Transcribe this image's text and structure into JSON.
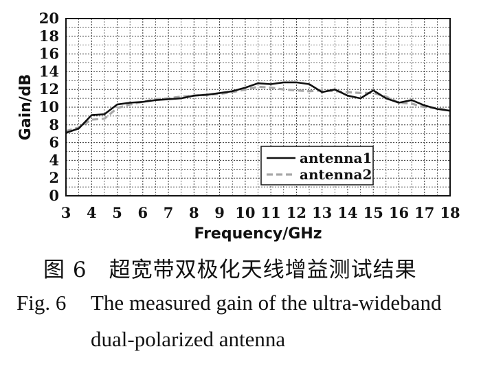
{
  "chart_data": {
    "type": "line",
    "xlabel": "Frequency/GHz",
    "ylabel": "Gain/dB",
    "xlim": [
      3,
      18
    ],
    "ylim": [
      0,
      20
    ],
    "xticks": [
      3,
      4,
      5,
      6,
      7,
      8,
      9,
      10,
      11,
      12,
      13,
      14,
      15,
      16,
      17,
      18
    ],
    "yticks": [
      0,
      2,
      4,
      6,
      8,
      10,
      12,
      14,
      16,
      18,
      20
    ],
    "grid": true,
    "legend_position": "bottom-right",
    "series": [
      {
        "name": "antenna1",
        "style": "solid",
        "color": "#111111",
        "x": [
          3.0,
          3.5,
          4.0,
          4.5,
          5.0,
          5.5,
          6.0,
          6.5,
          7.0,
          7.5,
          8.0,
          8.5,
          9.0,
          9.5,
          10.0,
          10.5,
          11.0,
          11.5,
          12.0,
          12.5,
          13.0,
          13.5,
          14.0,
          14.5,
          15.0,
          15.5,
          16.0,
          16.5,
          17.0,
          17.5,
          18.0
        ],
        "y": [
          7.1,
          7.6,
          9.1,
          9.2,
          10.3,
          10.5,
          10.6,
          10.8,
          10.9,
          11.0,
          11.3,
          11.4,
          11.6,
          11.8,
          12.2,
          12.7,
          12.6,
          12.8,
          12.8,
          12.6,
          11.7,
          12.0,
          11.3,
          11.0,
          11.9,
          11.0,
          10.5,
          10.8,
          10.2,
          9.8,
          9.6
        ]
      },
      {
        "name": "antenna2",
        "style": "dashed",
        "color": "#a8a8a8",
        "x": [
          3.0,
          3.5,
          4.0,
          4.5,
          5.0,
          5.5,
          6.0,
          6.5,
          7.0,
          7.5,
          8.0,
          8.5,
          9.0,
          9.5,
          10.0,
          10.5,
          11.0,
          11.5,
          12.0,
          12.5,
          13.0,
          13.5,
          14.0,
          14.5,
          15.0,
          15.5,
          16.0,
          16.5,
          17.0,
          17.5,
          18.0
        ],
        "y": [
          7.3,
          7.7,
          8.6,
          8.7,
          9.9,
          10.3,
          10.6,
          10.9,
          11.0,
          11.2,
          11.3,
          11.4,
          11.5,
          11.7,
          12.0,
          12.3,
          12.2,
          12.0,
          11.9,
          11.8,
          11.9,
          11.8,
          11.7,
          11.6,
          11.6,
          11.2,
          10.5,
          10.4,
          10.0,
          9.9,
          9.6
        ]
      }
    ]
  },
  "caption": {
    "zh": "图 6　超宽带双极化天线增益测试结果",
    "en_label": "Fig. 6",
    "en_line1": "The measured gain of the ultra-wideband",
    "en_line2": "dual-polarized antenna"
  }
}
